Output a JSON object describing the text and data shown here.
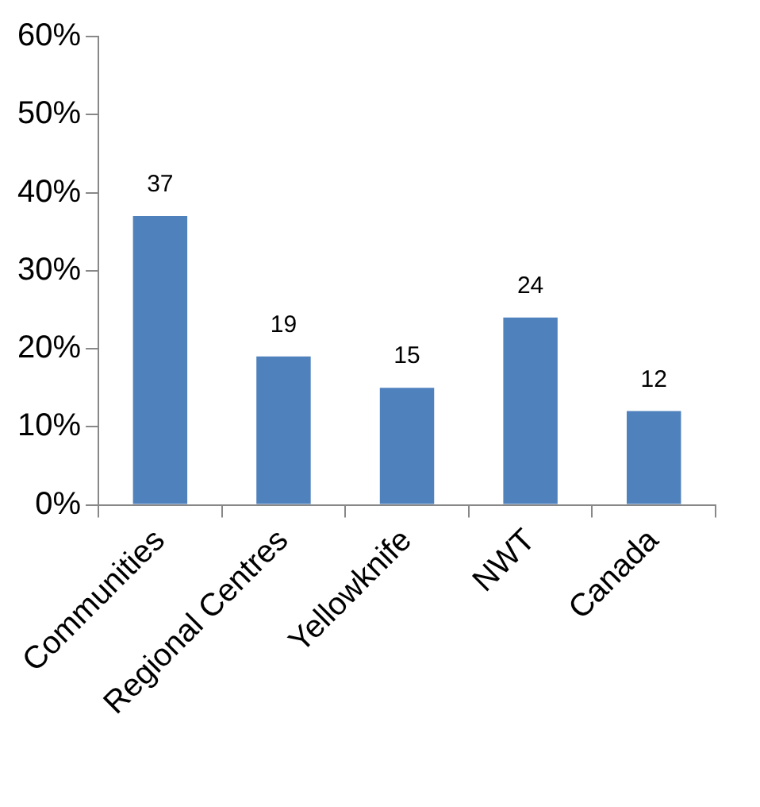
{
  "chart_data": {
    "type": "bar",
    "categories": [
      "Communities",
      "Regional Centres",
      "Yellowknife",
      "NWT",
      "Canada"
    ],
    "values": [
      37,
      19,
      15,
      24,
      12
    ],
    "color": "#4f81bd",
    "data_labels": true,
    "grid": false,
    "legend": false,
    "ylim": [
      0,
      60
    ],
    "yticks": [
      {
        "value": 0,
        "label": "0%"
      },
      {
        "value": 10,
        "label": "10%"
      },
      {
        "value": 20,
        "label": "20%"
      },
      {
        "value": 30,
        "label": "30%"
      },
      {
        "value": 40,
        "label": "40%"
      },
      {
        "value": 50,
        "label": "50%"
      },
      {
        "value": 60,
        "label": "60%"
      }
    ]
  }
}
